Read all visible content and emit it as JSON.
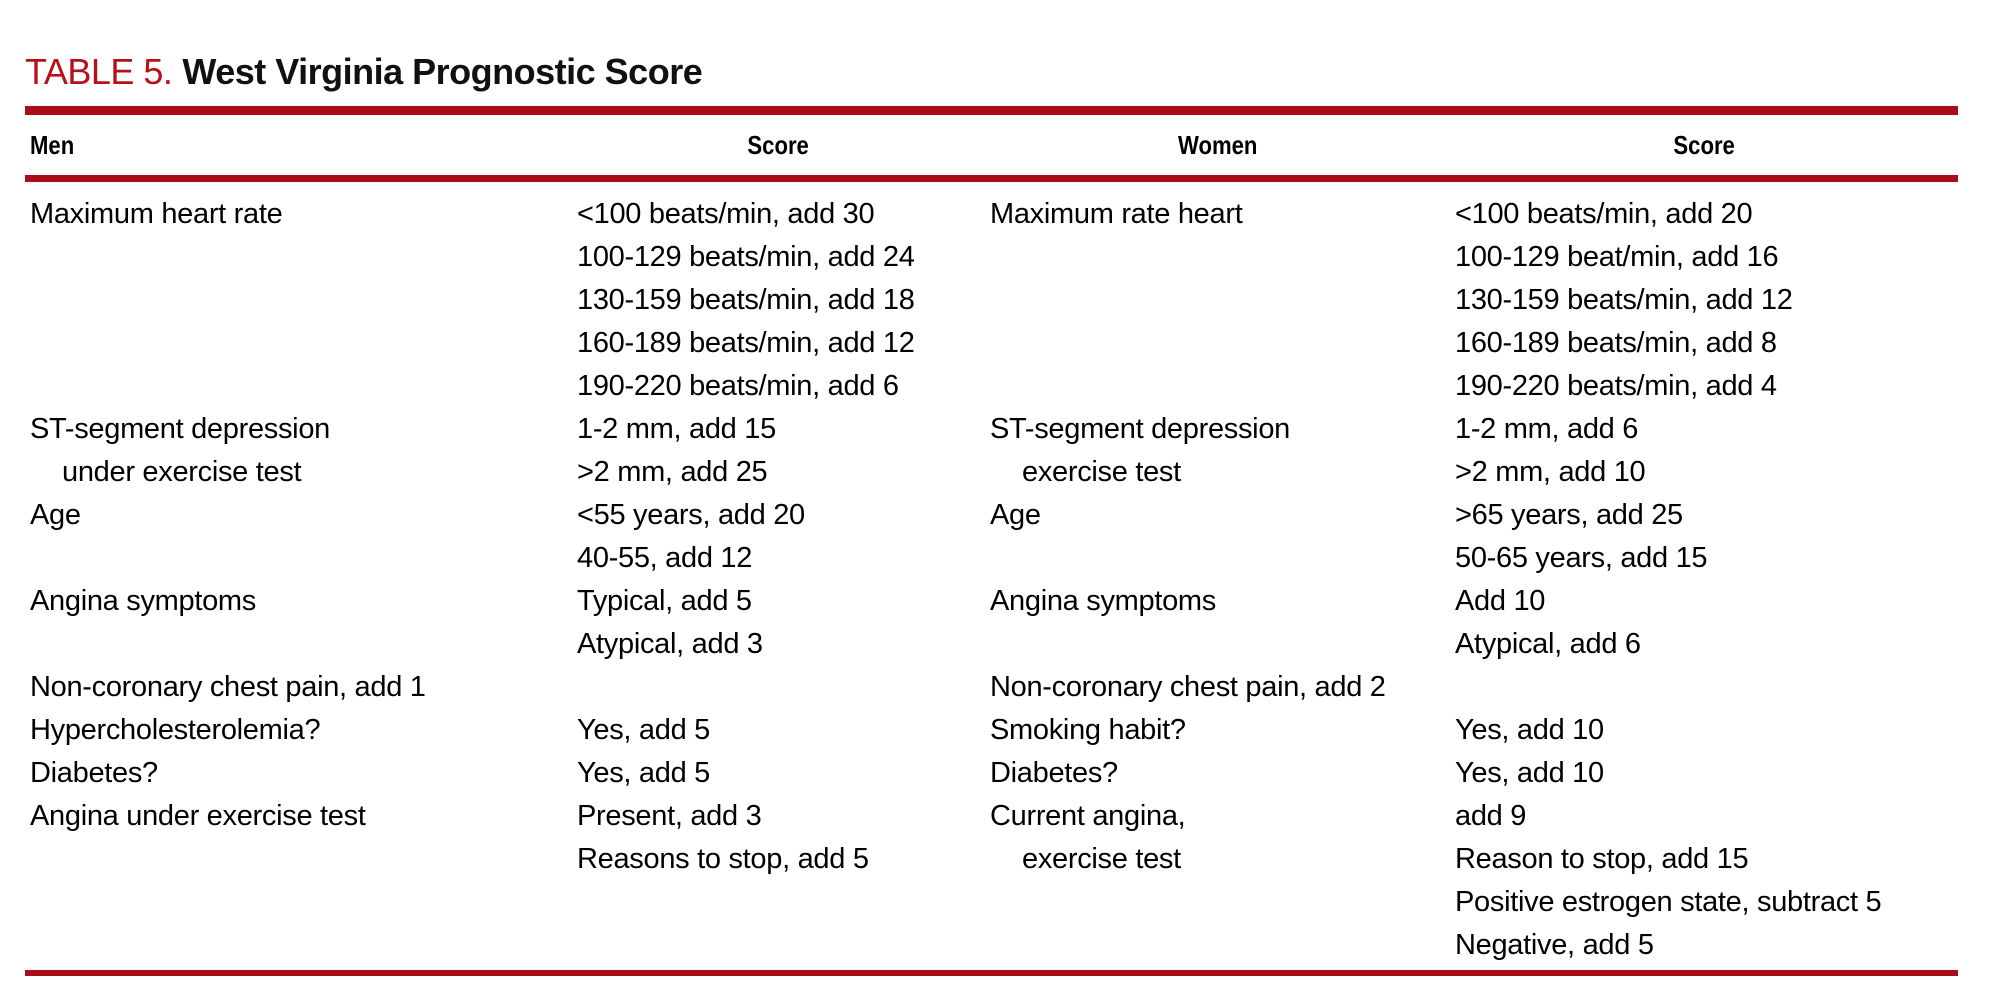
{
  "title": {
    "label": "TABLE 5.",
    "text": "West Virginia Prognostic Score"
  },
  "colors": {
    "accent": "#a90d18",
    "title_red": "#b5101c",
    "text": "#000000"
  },
  "header": {
    "men": "Men",
    "men_score": "Score",
    "women": "Women",
    "women_score": "Score"
  },
  "rows": [
    {
      "men": "Maximum heart rate",
      "men_score": "<100 beats/min, add 30",
      "women": "Maximum rate heart",
      "women_score": "<100 beats/min, add 20"
    },
    {
      "men": "",
      "men_score": "100-129 beats/min, add 24",
      "women": "",
      "women_score": "100-129 beat/min, add 16"
    },
    {
      "men": "",
      "men_score": "130-159 beats/min, add 18",
      "women": "",
      "women_score": "130-159 beats/min, add 12"
    },
    {
      "men": "",
      "men_score": "160-189 beats/min, add 12",
      "women": "",
      "women_score": "160-189 beats/min, add 8"
    },
    {
      "men": "",
      "men_score": "190-220 beats/min, add 6",
      "women": "",
      "women_score": "190-220 beats/min, add 4"
    },
    {
      "men": "ST-segment depression",
      "men_score": "1-2 mm, add 15",
      "women": "ST-segment depression",
      "women_score": "1-2 mm, add 6"
    },
    {
      "men": "under exercise test",
      "men_score": ">2 mm, add 25",
      "women": "exercise test",
      "women_score": ">2 mm, add 10"
    },
    {
      "men": "Age",
      "men_score": "<55 years, add 20",
      "women": "Age",
      "women_score": ">65 years, add 25"
    },
    {
      "men": "",
      "men_score": "40-55, add 12",
      "women": "",
      "women_score": "50-65 years, add 15"
    },
    {
      "men": "Angina symptoms",
      "men_score": "Typical, add 5",
      "women": "Angina symptoms",
      "women_score": "Add 10"
    },
    {
      "men": "",
      "men_score": "Atypical, add 3",
      "women": "",
      "women_score": "Atypical, add 6"
    },
    {
      "men": "Non-coronary chest pain, add 1",
      "men_score": "",
      "women": "Non-coronary chest pain, add 2",
      "women_score": ""
    },
    {
      "men": "Hypercholesterolemia?",
      "men_score": "Yes, add 5",
      "women": "Smoking habit?",
      "women_score": "Yes, add 10"
    },
    {
      "men": "Diabetes?",
      "men_score": "Yes, add 5",
      "women": "Diabetes?",
      "women_score": "Yes, add 10"
    },
    {
      "men": "Angina under exercise test",
      "men_score": "Present, add 3",
      "women": "Current angina,",
      "women_score": "add 9"
    },
    {
      "men": "",
      "men_score": "Reasons to stop, add 5",
      "women": "exercise test",
      "women_score": "Reason to stop, add 15"
    },
    {
      "men": "",
      "men_score": "",
      "women": "",
      "women_score": "Positive estrogen state, subtract 5"
    },
    {
      "men": "",
      "men_score": "",
      "women": "",
      "women_score": "Negative, add 5"
    }
  ]
}
